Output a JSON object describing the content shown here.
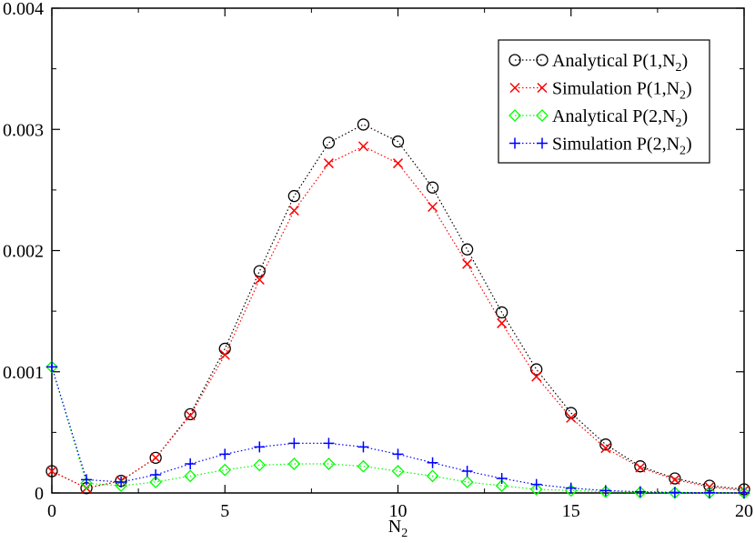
{
  "chart_data": {
    "type": "line",
    "title": "",
    "xlabel": "N",
    "xlabel_sub": "2",
    "ylabel": "",
    "xlim": [
      0,
      20
    ],
    "ylim": [
      0,
      0.004
    ],
    "xticks": [
      0,
      5,
      10,
      15,
      20
    ],
    "yticks": [
      0,
      0.001,
      0.002,
      0.003,
      0.004
    ],
    "xtick_labels": [
      "0",
      "5",
      "10",
      "15",
      "20"
    ],
    "ytick_labels": [
      "0",
      "0.001",
      "0.002",
      "0.003",
      "0.004"
    ],
    "grid": false,
    "legend_position": "top-right",
    "x": [
      0,
      1,
      2,
      3,
      4,
      5,
      6,
      7,
      8,
      9,
      10,
      11,
      12,
      13,
      14,
      15,
      16,
      17,
      18,
      19,
      20
    ],
    "series": [
      {
        "name": "Analytical P(1,N",
        "name_sub": "2",
        "name_end": ")",
        "color": "#000000",
        "marker": "circle",
        "values": [
          0.00018,
          4e-05,
          0.0001,
          0.00029,
          0.00065,
          0.00119,
          0.00183,
          0.00245,
          0.00289,
          0.00304,
          0.0029,
          0.00252,
          0.00201,
          0.00149,
          0.00102,
          0.00066,
          0.0004,
          0.00022,
          0.00012,
          6e-05,
          3e-05
        ]
      },
      {
        "name": "Simulation P(1,N",
        "name_sub": "2",
        "name_end": ")",
        "color": "#ff0000",
        "marker": "x",
        "values": [
          0.00018,
          4e-05,
          0.0001,
          0.00029,
          0.00064,
          0.00114,
          0.00176,
          0.00233,
          0.00272,
          0.00286,
          0.00272,
          0.00236,
          0.00189,
          0.0014,
          0.00096,
          0.00062,
          0.00037,
          0.00021,
          0.00011,
          5e-05,
          2e-05
        ]
      },
      {
        "name": "Analytical P(2,N",
        "name_sub": "2",
        "name_end": ")",
        "color": "#00ff00",
        "marker": "diamond",
        "values": [
          0.00104,
          8e-05,
          6e-05,
          9e-05,
          0.00014,
          0.00019,
          0.00023,
          0.00024,
          0.00024,
          0.00022,
          0.00018,
          0.00014,
          9e-05,
          6e-05,
          3e-05,
          2e-05,
          1e-05,
          5e-06,
          2e-06,
          1e-06,
          0.0
        ]
      },
      {
        "name": "Simulation P(2,N",
        "name_sub": "2",
        "name_end": ")",
        "color": "#0000ff",
        "marker": "plus",
        "values": [
          0.00104,
          0.00011,
          9e-05,
          0.00015,
          0.00024,
          0.00032,
          0.00038,
          0.00041,
          0.00041,
          0.00038,
          0.00032,
          0.00025,
          0.00018,
          0.00012,
          7e-05,
          4e-05,
          2e-05,
          1e-05,
          5e-06,
          2e-06,
          1e-06
        ]
      }
    ]
  }
}
